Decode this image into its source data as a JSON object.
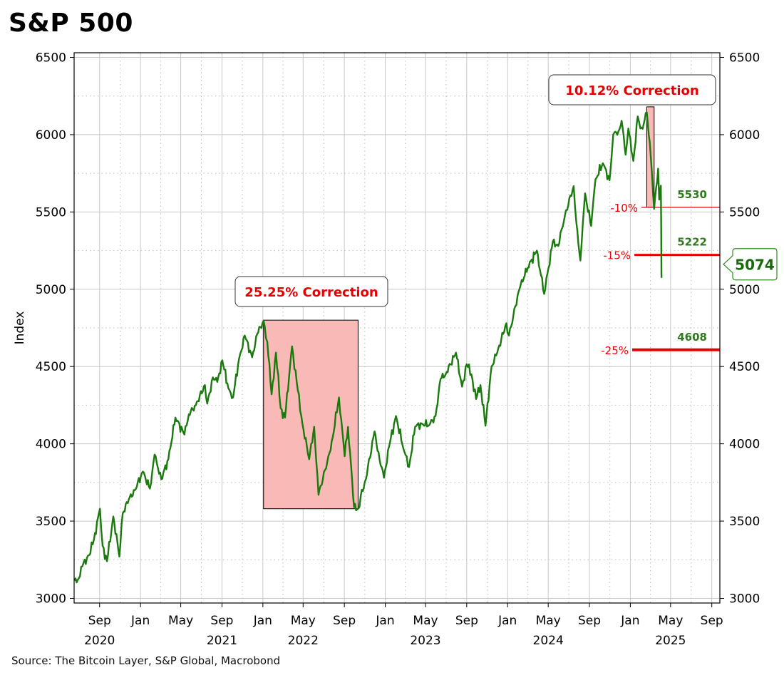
{
  "chart_data": {
    "type": "line",
    "title": "S&P 500",
    "ylabel": "Index",
    "source": "Source: The Bitcoin Layer, S&P Global, Macrobond",
    "ylim": [
      2970,
      6530
    ],
    "xlim": [
      "2020-06-17",
      "2025-09-25"
    ],
    "y_ticks": [
      3000,
      3500,
      4000,
      4500,
      5000,
      5500,
      6000,
      6500
    ],
    "x_ticks": [
      {
        "date": "2020-09-01",
        "label": "Sep",
        "year": "2020"
      },
      {
        "date": "2021-01-01",
        "label": "Jan"
      },
      {
        "date": "2021-05-01",
        "label": "May"
      },
      {
        "date": "2021-09-01",
        "label": "Sep",
        "year": "2021"
      },
      {
        "date": "2022-01-01",
        "label": "Jan"
      },
      {
        "date": "2022-05-01",
        "label": "May",
        "year": "2022"
      },
      {
        "date": "2022-09-01",
        "label": "Sep"
      },
      {
        "date": "2023-01-01",
        "label": "Jan"
      },
      {
        "date": "2023-05-01",
        "label": "May",
        "year": "2023"
      },
      {
        "date": "2023-09-01",
        "label": "Sep"
      },
      {
        "date": "2024-01-01",
        "label": "Jan"
      },
      {
        "date": "2024-05-01",
        "label": "May",
        "year": "2024"
      },
      {
        "date": "2024-09-01",
        "label": "Sep"
      },
      {
        "date": "2025-01-01",
        "label": "Jan"
      },
      {
        "date": "2025-05-01",
        "label": "May",
        "year": "2025"
      },
      {
        "date": "2025-09-01",
        "label": "Sep"
      }
    ],
    "grid": true,
    "line_color": "#1a7a0d",
    "series": [
      {
        "points": [
          [
            "2020-06-18",
            3115
          ],
          [
            "2020-07-01",
            3130
          ],
          [
            "2020-07-15",
            3230
          ],
          [
            "2020-08-01",
            3280
          ],
          [
            "2020-08-15",
            3380
          ],
          [
            "2020-09-02",
            3580
          ],
          [
            "2020-09-10",
            3340
          ],
          [
            "2020-09-23",
            3240
          ],
          [
            "2020-10-12",
            3530
          ],
          [
            "2020-10-30",
            3270
          ],
          [
            "2020-11-09",
            3550
          ],
          [
            "2020-11-27",
            3640
          ],
          [
            "2020-12-15",
            3700
          ],
          [
            "2021-01-08",
            3820
          ],
          [
            "2021-01-29",
            3710
          ],
          [
            "2021-02-12",
            3930
          ],
          [
            "2021-03-04",
            3770
          ],
          [
            "2021-03-25",
            3900
          ],
          [
            "2021-04-15",
            4170
          ],
          [
            "2021-05-12",
            4060
          ],
          [
            "2021-05-25",
            4190
          ],
          [
            "2021-06-15",
            4250
          ],
          [
            "2021-07-12",
            4380
          ],
          [
            "2021-07-19",
            4260
          ],
          [
            "2021-08-05",
            4430
          ],
          [
            "2021-08-18",
            4400
          ],
          [
            "2021-09-02",
            4540
          ],
          [
            "2021-09-20",
            4360
          ],
          [
            "2021-10-04",
            4300
          ],
          [
            "2021-10-22",
            4550
          ],
          [
            "2021-11-08",
            4700
          ],
          [
            "2021-11-30",
            4560
          ],
          [
            "2021-12-15",
            4710
          ],
          [
            "2022-01-03",
            4796
          ],
          [
            "2022-01-14",
            4660
          ],
          [
            "2022-01-27",
            4320
          ],
          [
            "2022-02-09",
            4590
          ],
          [
            "2022-02-23",
            4230
          ],
          [
            "2022-03-08",
            4170
          ],
          [
            "2022-03-29",
            4630
          ],
          [
            "2022-04-12",
            4400
          ],
          [
            "2022-04-29",
            4130
          ],
          [
            "2022-05-19",
            3900
          ],
          [
            "2022-06-03",
            4110
          ],
          [
            "2022-06-16",
            3670
          ],
          [
            "2022-07-05",
            3830
          ],
          [
            "2022-07-22",
            3960
          ],
          [
            "2022-08-16",
            4300
          ],
          [
            "2022-09-02",
            3920
          ],
          [
            "2022-09-12",
            4110
          ],
          [
            "2022-09-30",
            3590
          ],
          [
            "2022-10-12",
            3580
          ],
          [
            "2022-10-20",
            3665
          ],
          [
            "2022-11-04",
            3770
          ],
          [
            "2022-11-30",
            4080
          ],
          [
            "2022-12-15",
            3900
          ],
          [
            "2022-12-28",
            3780
          ],
          [
            "2023-01-12",
            3980
          ],
          [
            "2023-02-02",
            4180
          ],
          [
            "2023-02-24",
            3970
          ],
          [
            "2023-03-13",
            3850
          ],
          [
            "2023-03-31",
            4110
          ],
          [
            "2023-04-20",
            4130
          ],
          [
            "2023-05-12",
            4120
          ],
          [
            "2023-05-31",
            4180
          ],
          [
            "2023-06-15",
            4420
          ],
          [
            "2023-06-30",
            4450
          ],
          [
            "2023-07-31",
            4590
          ],
          [
            "2023-08-18",
            4370
          ],
          [
            "2023-09-01",
            4515
          ],
          [
            "2023-09-15",
            4450
          ],
          [
            "2023-09-29",
            4290
          ],
          [
            "2023-10-12",
            4380
          ],
          [
            "2023-10-27",
            4117
          ],
          [
            "2023-11-14",
            4500
          ],
          [
            "2023-12-01",
            4590
          ],
          [
            "2023-12-28",
            4780
          ],
          [
            "2024-01-05",
            4700
          ],
          [
            "2024-01-24",
            4890
          ],
          [
            "2024-02-09",
            5030
          ],
          [
            "2024-03-01",
            5140
          ],
          [
            "2024-03-28",
            5250
          ],
          [
            "2024-04-19",
            4970
          ],
          [
            "2024-05-15",
            5310
          ],
          [
            "2024-05-31",
            5280
          ],
          [
            "2024-06-20",
            5480
          ],
          [
            "2024-07-16",
            5667
          ],
          [
            "2024-07-24",
            5430
          ],
          [
            "2024-08-05",
            5186
          ],
          [
            "2024-08-19",
            5620
          ],
          [
            "2024-09-06",
            5410
          ],
          [
            "2024-09-19",
            5710
          ],
          [
            "2024-10-11",
            5815
          ],
          [
            "2024-10-31",
            5705
          ],
          [
            "2024-11-11",
            6001
          ],
          [
            "2024-11-26",
            6020
          ],
          [
            "2024-12-06",
            6090
          ],
          [
            "2024-12-18",
            5870
          ],
          [
            "2024-12-26",
            6040
          ],
          [
            "2025-01-10",
            5830
          ],
          [
            "2025-01-23",
            6118
          ],
          [
            "2025-01-31",
            6040
          ],
          [
            "2025-02-10",
            6070
          ],
          [
            "2025-02-19",
            6144
          ],
          [
            "2025-02-28",
            5950
          ],
          [
            "2025-03-10",
            5610
          ],
          [
            "2025-03-13",
            5520
          ],
          [
            "2025-03-25",
            5780
          ],
          [
            "2025-03-28",
            5580
          ],
          [
            "2025-04-02",
            5670
          ],
          [
            "2025-04-03",
            5400
          ],
          [
            "2025-04-04",
            5074
          ]
        ]
      }
    ],
    "corrections": [
      {
        "label": "25.25% Correction",
        "x_start": "2022-01-03",
        "x_end": "2022-10-12",
        "y_low": 3580,
        "y_high": 4800
      },
      {
        "label": "10.12% Correction",
        "x_start": "2025-02-19",
        "x_end": "2025-03-13",
        "y_low": 5530,
        "y_high": 6180
      }
    ],
    "levels": [
      {
        "pct": "-10%",
        "value": 5530,
        "label": "5530"
      },
      {
        "pct": "-15%",
        "value": 5222,
        "label": "5222"
      },
      {
        "pct": "-25%",
        "value": 4608,
        "label": "4608"
      }
    ],
    "last_value": {
      "value": 5074,
      "label": "5074"
    }
  }
}
